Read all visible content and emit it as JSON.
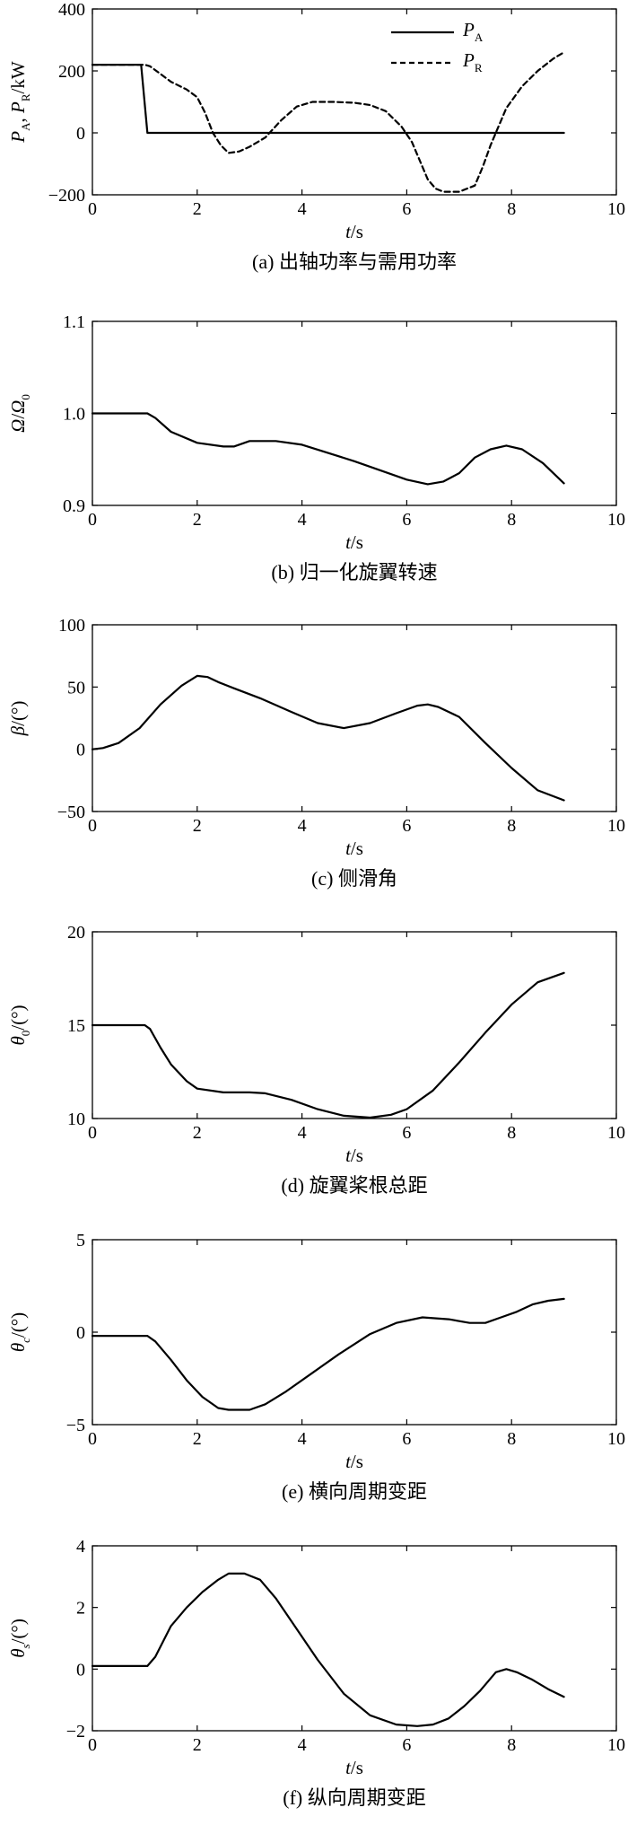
{
  "chart_data": [
    {
      "type": "line",
      "caption": "(a) 出轴功率与需用功率",
      "xlabel_var": "t",
      "xlabel_unit": "/s",
      "ylabel_parts": [
        {
          "t": "P",
          "italic": true
        },
        {
          "t": "A",
          "sub": true
        },
        {
          "t": ", "
        },
        {
          "t": "P",
          "italic": true
        },
        {
          "t": "R",
          "sub": true
        },
        {
          "t": "/kW"
        }
      ],
      "xlim": [
        0,
        10
      ],
      "ylim": [
        -200,
        400
      ],
      "xticks": [
        "0",
        "2",
        "4",
        "6",
        "8",
        "10"
      ],
      "yticks": [
        "-200",
        "0",
        "200",
        "400"
      ],
      "legend": "top-right",
      "series": [
        {
          "name": "PA",
          "name_main": "P",
          "name_sub": "A",
          "style": "solid",
          "x": [
            0,
            0.93,
            1.05,
            9.0
          ],
          "y": [
            220,
            220,
            0,
            0
          ]
        },
        {
          "name": "PR",
          "name_main": "P",
          "name_sub": "R",
          "style": "dashed",
          "x": [
            0,
            1.0,
            1.1,
            1.3,
            1.5,
            1.8,
            2.0,
            2.15,
            2.3,
            2.45,
            2.6,
            2.8,
            3.0,
            3.3,
            3.6,
            3.9,
            4.2,
            4.6,
            5.0,
            5.3,
            5.6,
            5.9,
            6.1,
            6.25,
            6.4,
            6.55,
            6.7,
            6.85,
            7.0,
            7.3,
            7.45,
            7.6,
            7.75,
            7.9,
            8.2,
            8.5,
            8.8,
            9.0
          ],
          "y": [
            220,
            220,
            215,
            190,
            165,
            140,
            115,
            65,
            0,
            -40,
            -65,
            -60,
            -45,
            -15,
            40,
            85,
            100,
            100,
            97,
            90,
            70,
            20,
            -30,
            -90,
            -150,
            -180,
            -190,
            -190,
            -190,
            -170,
            -110,
            -40,
            20,
            80,
            150,
            200,
            240,
            260
          ]
        }
      ]
    },
    {
      "type": "line",
      "caption": "(b) 归一化旋翼转速",
      "xlabel_var": "t",
      "xlabel_unit": "/s",
      "ylabel_parts": [
        {
          "t": "Ω",
          "italic": true
        },
        {
          "t": "/"
        },
        {
          "t": "Ω",
          "italic": true
        },
        {
          "t": "0",
          "sub": true
        }
      ],
      "xlim": [
        0,
        10
      ],
      "ylim": [
        0.9,
        1.1
      ],
      "xticks": [
        "0",
        "2",
        "4",
        "6",
        "8",
        "10"
      ],
      "yticks": [
        "0.9",
        "1.0",
        "1.1"
      ],
      "series": [
        {
          "style": "solid",
          "x": [
            0,
            1.05,
            1.2,
            1.5,
            2.0,
            2.5,
            2.7,
            3.0,
            3.5,
            4.0,
            5.0,
            6.0,
            6.4,
            6.7,
            7.0,
            7.3,
            7.6,
            7.9,
            8.2,
            8.6,
            9.0
          ],
          "y": [
            1.0,
            1.0,
            0.995,
            0.98,
            0.968,
            0.964,
            0.964,
            0.97,
            0.97,
            0.966,
            0.948,
            0.928,
            0.923,
            0.926,
            0.935,
            0.952,
            0.961,
            0.965,
            0.961,
            0.946,
            0.924
          ]
        }
      ]
    },
    {
      "type": "line",
      "caption": "(c) 侧滑角",
      "xlabel_var": "t",
      "xlabel_unit": "/s",
      "ylabel_parts": [
        {
          "t": "β",
          "italic": true
        },
        {
          "t": "/(°)"
        }
      ],
      "xlim": [
        0,
        10
      ],
      "ylim": [
        -50,
        100
      ],
      "xticks": [
        "0",
        "2",
        "4",
        "6",
        "8",
        "10"
      ],
      "yticks": [
        "-50",
        "0",
        "50",
        "100"
      ],
      "series": [
        {
          "style": "solid",
          "x": [
            0,
            0.2,
            0.5,
            0.9,
            1.3,
            1.7,
            2.0,
            2.2,
            2.4,
            2.7,
            3.2,
            3.8,
            4.3,
            4.8,
            5.3,
            5.8,
            6.2,
            6.4,
            6.6,
            7.0,
            7.5,
            8.0,
            8.5,
            9.0
          ],
          "y": [
            0,
            1,
            5,
            17,
            36,
            51,
            59,
            58,
            54,
            49,
            41,
            30,
            21,
            17,
            21,
            29,
            35,
            36,
            34,
            26,
            5,
            -15,
            -33,
            -41
          ]
        }
      ]
    },
    {
      "type": "line",
      "caption": "(d) 旋翼桨根总距",
      "xlabel_var": "t",
      "xlabel_unit": "/s",
      "ylabel_parts": [
        {
          "t": "θ",
          "italic": true
        },
        {
          "t": "0",
          "sub": true
        },
        {
          "t": "/(°)"
        }
      ],
      "xlim": [
        0,
        10
      ],
      "ylim": [
        10,
        20
      ],
      "xticks": [
        "0",
        "2",
        "4",
        "6",
        "8",
        "10"
      ],
      "yticks": [
        "10",
        "15",
        "20"
      ],
      "series": [
        {
          "style": "solid",
          "x": [
            0,
            1.0,
            1.1,
            1.3,
            1.5,
            1.8,
            2.0,
            2.5,
            3.0,
            3.3,
            3.8,
            4.3,
            4.8,
            5.3,
            5.7,
            6.0,
            6.5,
            7.0,
            7.5,
            8.0,
            8.5,
            9.0
          ],
          "y": [
            15.0,
            15.0,
            14.8,
            13.8,
            12.9,
            12.0,
            11.6,
            11.4,
            11.4,
            11.35,
            11.0,
            10.5,
            10.15,
            10.05,
            10.2,
            10.5,
            11.5,
            13.0,
            14.6,
            16.1,
            17.3,
            17.8
          ]
        }
      ]
    },
    {
      "type": "line",
      "caption": "(e) 横向周期变距",
      "xlabel_var": "t",
      "xlabel_unit": "/s",
      "ylabel_parts": [
        {
          "t": "θ",
          "italic": true
        },
        {
          "t": "c",
          "sub": true,
          "italic": true
        },
        {
          "t": "/(°)"
        }
      ],
      "xlim": [
        0,
        10
      ],
      "ylim": [
        -5,
        5
      ],
      "xticks": [
        "0",
        "2",
        "4",
        "6",
        "8",
        "10"
      ],
      "yticks": [
        "-5",
        "0",
        "5"
      ],
      "series": [
        {
          "style": "solid",
          "x": [
            0,
            1.05,
            1.2,
            1.5,
            1.8,
            2.1,
            2.4,
            2.6,
            3.0,
            3.3,
            3.7,
            4.2,
            4.7,
            5.3,
            5.8,
            6.3,
            6.8,
            7.2,
            7.5,
            7.8,
            8.1,
            8.4,
            8.7,
            9.0
          ],
          "y": [
            -0.2,
            -0.2,
            -0.5,
            -1.5,
            -2.6,
            -3.5,
            -4.1,
            -4.2,
            -4.2,
            -3.9,
            -3.2,
            -2.2,
            -1.2,
            -0.1,
            0.5,
            0.8,
            0.7,
            0.5,
            0.5,
            0.8,
            1.1,
            1.5,
            1.7,
            1.8
          ]
        }
      ]
    },
    {
      "type": "line",
      "caption": "(f) 纵向周期变距",
      "xlabel_var": "t",
      "xlabel_unit": "/s",
      "ylabel_parts": [
        {
          "t": "θ",
          "italic": true
        },
        {
          "t": "s",
          "sub": true,
          "italic": true
        },
        {
          "t": "/(°)"
        }
      ],
      "xlim": [
        0,
        10
      ],
      "ylim": [
        -2,
        4
      ],
      "xticks": [
        "0",
        "2",
        "4",
        "6",
        "8",
        "10"
      ],
      "yticks": [
        "-2",
        "0",
        "2",
        "4"
      ],
      "series": [
        {
          "style": "solid",
          "x": [
            0,
            1.05,
            1.2,
            1.5,
            1.8,
            2.1,
            2.4,
            2.6,
            2.9,
            3.2,
            3.5,
            3.9,
            4.3,
            4.8,
            5.3,
            5.8,
            6.2,
            6.5,
            6.8,
            7.1,
            7.4,
            7.7,
            7.9,
            8.1,
            8.4,
            8.7,
            9.0
          ],
          "y": [
            0.1,
            0.1,
            0.4,
            1.4,
            2.0,
            2.5,
            2.9,
            3.1,
            3.1,
            2.9,
            2.3,
            1.3,
            0.3,
            -0.8,
            -1.5,
            -1.8,
            -1.85,
            -1.8,
            -1.6,
            -1.2,
            -0.7,
            -0.1,
            0.0,
            -0.1,
            -0.35,
            -0.65,
            -0.9
          ]
        }
      ]
    }
  ]
}
